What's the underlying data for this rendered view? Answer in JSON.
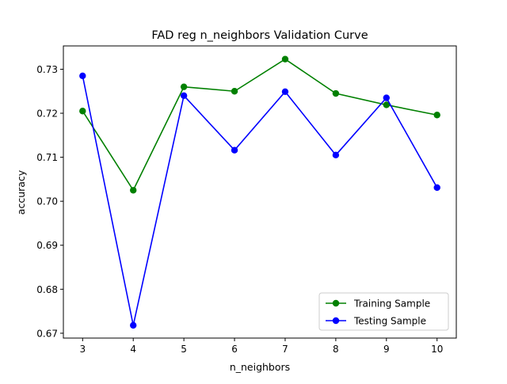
{
  "chart_data": {
    "type": "line",
    "title": "FAD reg n_neighbors Validation Curve",
    "xlabel": "n_neighbors",
    "ylabel": "accuracy",
    "x": [
      3,
      4,
      5,
      6,
      7,
      8,
      9,
      10
    ],
    "xticks": [
      "3",
      "4",
      "5",
      "6",
      "7",
      "8",
      "9",
      "10"
    ],
    "xlim": [
      2.62,
      10.38
    ],
    "ylim": [
      0.6689,
      0.7353
    ],
    "yticks": [
      0.67,
      0.68,
      0.69,
      0.7,
      0.71,
      0.72,
      0.73
    ],
    "ytick_labels": [
      "0.67",
      "0.68",
      "0.69",
      "0.70",
      "0.71",
      "0.72",
      "0.73"
    ],
    "grid": false,
    "legend_position": "lower right",
    "series": [
      {
        "name": "Training Sample",
        "color": "#008000",
        "marker": "circle",
        "values": [
          0.7205,
          0.7025,
          0.726,
          0.725,
          0.7323,
          0.7245,
          0.7219,
          0.7196
        ]
      },
      {
        "name": "Testing Sample",
        "color": "#0000ff",
        "marker": "circle",
        "values": [
          0.7285,
          0.6718,
          0.724,
          0.7116,
          0.7249,
          0.7105,
          0.7235,
          0.7031
        ]
      }
    ]
  }
}
